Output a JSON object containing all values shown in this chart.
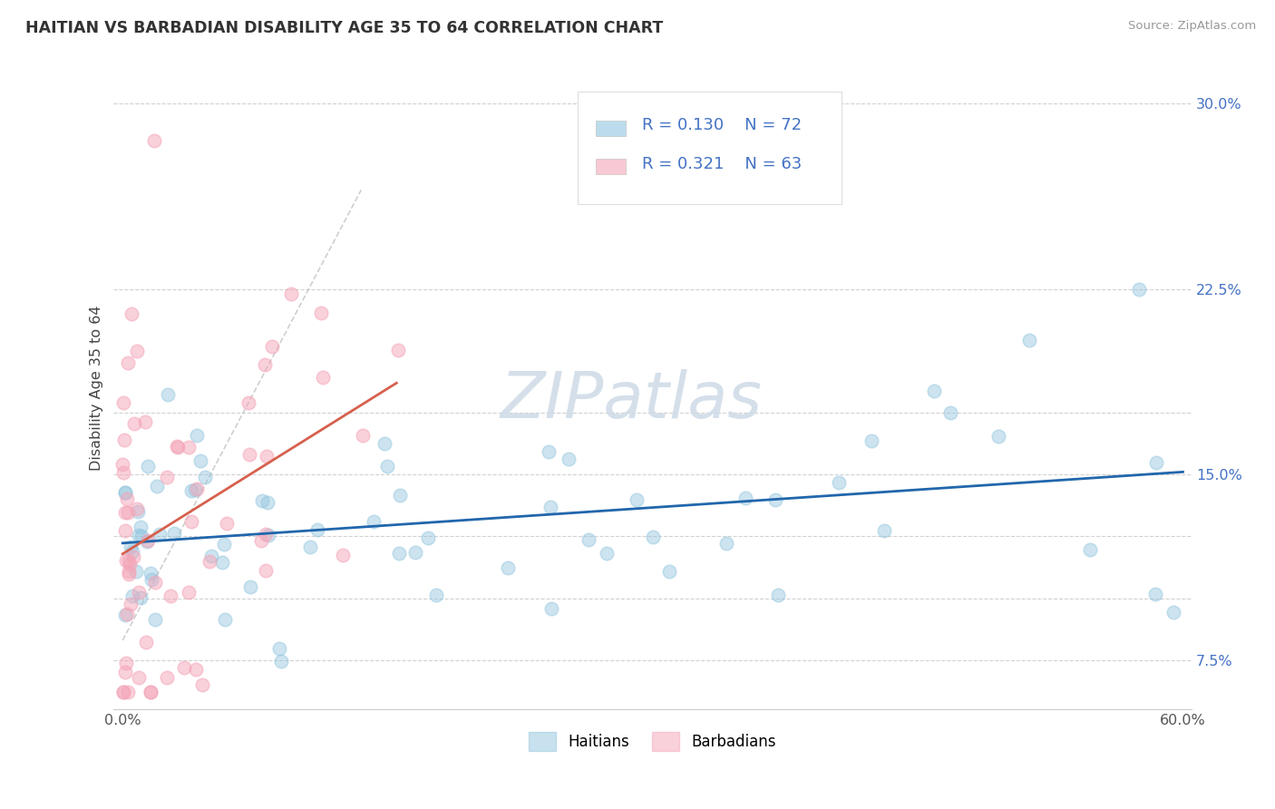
{
  "title": "HAITIAN VS BARBADIAN DISABILITY AGE 35 TO 64 CORRELATION CHART",
  "source": "Source: ZipAtlas.com",
  "ylabel_label": "Disability Age 35 to 64",
  "xmin": 0.0,
  "xmax": 0.6,
  "ymin": 0.055,
  "ymax": 0.315,
  "ytick_positions": [
    0.075,
    0.1,
    0.125,
    0.15,
    0.175,
    0.225,
    0.3
  ],
  "ytick_labels": [
    "7.5%",
    "",
    "",
    "15.0%",
    "",
    "22.5%",
    "30.0%"
  ],
  "xtick_positions": [
    0.0,
    0.1,
    0.2,
    0.3,
    0.4,
    0.5,
    0.6
  ],
  "xtick_labels": [
    "0.0%",
    "",
    "",
    "",
    "",
    "",
    "60.0%"
  ],
  "blue_scatter_color": "#92c5de",
  "pink_scatter_color": "#f4a5b8",
  "blue_line_color": "#2166ac",
  "pink_line_color": "#d6604d",
  "dash_color": "#bbbbbb",
  "watermark_color": "#d0dce8",
  "legend_color": "#4472c4",
  "ytick_color": "#4472c4",
  "xtick_color": "#555555"
}
